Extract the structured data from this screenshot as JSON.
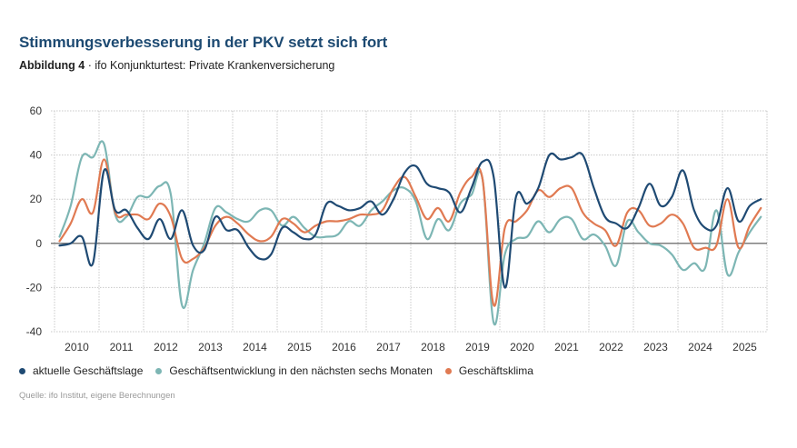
{
  "header": {
    "title": "Stimmungsverbesserung in der PKV setzt sich fort",
    "figure_label": "Abbildung 4",
    "separator": " · ",
    "subtitle": "ifo Konjunkturtest: Private Krankenversicherung"
  },
  "source": "Quelle: ifo Institut, eigene Berechnungen",
  "colors": {
    "aktuelle": "#1f4a73",
    "entwicklung": "#7db6b4",
    "klima": "#e07a52"
  },
  "chart_data": {
    "type": "line",
    "title": "Stimmungsverbesserung in der PKV setzt sich fort",
    "xlabel": "",
    "ylabel": "",
    "ylim": [
      -40,
      60
    ],
    "yticks": [
      -40,
      -20,
      0,
      20,
      40,
      60
    ],
    "xticks": [
      "2010",
      "2011",
      "2012",
      "2013",
      "2014",
      "2015",
      "2016",
      "2017",
      "2018",
      "2019",
      "2020",
      "2021",
      "2022",
      "2023",
      "2024",
      "2025"
    ],
    "grid": true,
    "legend_position": "bottom-left",
    "x_frequency": "quarterly",
    "x_start": "2010-Q1",
    "x_end": "2025-Q4",
    "series": [
      {
        "name": "aktuelle Geschäftslage",
        "color": "#1f4a73",
        "values": [
          -1,
          0,
          3,
          -9,
          33,
          15,
          15,
          7,
          2,
          11,
          2,
          15,
          -1,
          -3,
          12,
          6,
          6,
          -2,
          -7,
          -5,
          7,
          5,
          2,
          4,
          18,
          17,
          15,
          16,
          19,
          13,
          20,
          32,
          35,
          27,
          25,
          23,
          14,
          25,
          37,
          30,
          -20,
          21,
          18,
          25,
          40,
          38,
          39,
          40,
          25,
          12,
          9,
          7,
          16,
          27,
          17,
          21,
          33,
          15,
          7,
          8,
          25,
          10,
          17,
          20
        ]
      },
      {
        "name": "Geschäftsentwicklung in den nächsten sechs Monaten",
        "color": "#7db6b4",
        "values": [
          3,
          17,
          39,
          39,
          45,
          13,
          12,
          21,
          21,
          26,
          22,
          -28,
          -12,
          0,
          16,
          14,
          11,
          10,
          15,
          15,
          8,
          12,
          7,
          3,
          3,
          4,
          10,
          8,
          15,
          19,
          24,
          25,
          19,
          2,
          11,
          6,
          18,
          22,
          29,
          -36,
          -5,
          2,
          3,
          10,
          5,
          11,
          11,
          2,
          4,
          -1,
          -10,
          10,
          5,
          0,
          -1,
          -5,
          -12,
          -9,
          -11,
          15,
          -14,
          -4,
          5,
          12
        ]
      },
      {
        "name": "Geschäftsklima",
        "color": "#e07a52",
        "values": [
          1,
          9,
          20,
          14,
          38,
          14,
          13,
          13,
          11,
          18,
          12,
          -7,
          -7,
          -2,
          8,
          12,
          9,
          4,
          1,
          3,
          11,
          9,
          5,
          8,
          10,
          10,
          11,
          13,
          13,
          15,
          25,
          30,
          21,
          11,
          16,
          10,
          23,
          30,
          29,
          -28,
          7,
          10,
          15,
          24,
          21,
          25,
          25,
          14,
          9,
          6,
          -1,
          14,
          15,
          8,
          9,
          13,
          9,
          -2,
          -2,
          -1,
          20,
          -2,
          8,
          16
        ]
      }
    ]
  }
}
